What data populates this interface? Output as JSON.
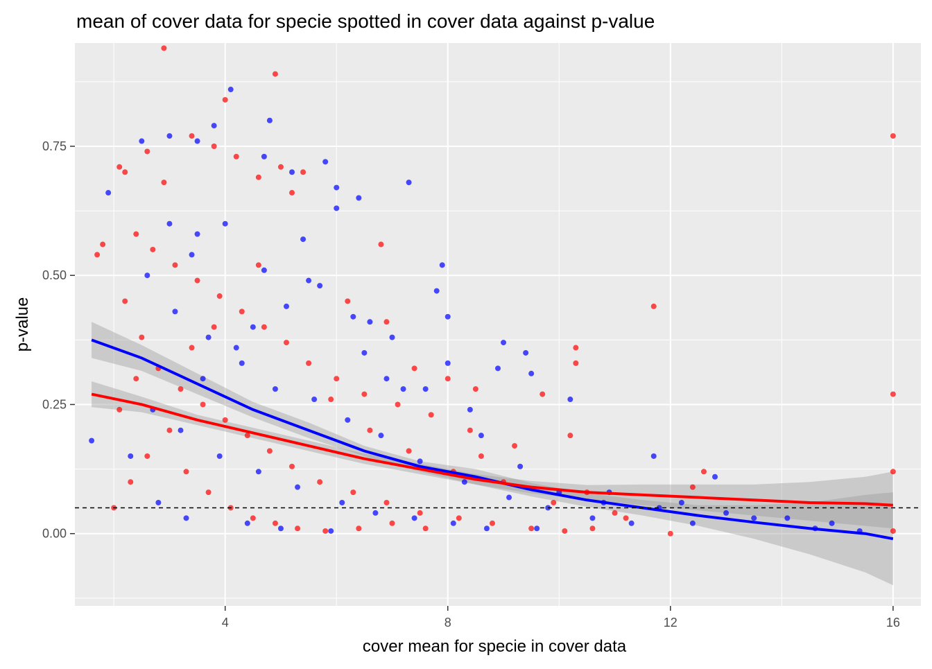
{
  "chart_data": {
    "type": "scatter",
    "title": "mean of cover data for specie spotted in cover data against p-value",
    "xlabel": "cover mean for specie in cover data",
    "ylabel": "p-value",
    "xlim": [
      1.3,
      16.5
    ],
    "ylim": [
      -0.14,
      0.95
    ],
    "x_ticks": [
      4,
      8,
      12,
      16
    ],
    "x_tick_labels": [
      "4",
      "8",
      "12",
      "16"
    ],
    "y_ticks": [
      0.0,
      0.25,
      0.5,
      0.75
    ],
    "y_tick_labels": [
      "0.00",
      "0.25",
      "0.50",
      "0.75"
    ],
    "grid": true,
    "legend": "none",
    "reference_line": {
      "y": 0.05,
      "style": "dashed"
    },
    "colors": {
      "panel_bg": "#ebebeb",
      "grid": "#ffffff",
      "blue": "#0000ff",
      "red": "#ff0000",
      "ribbon": "#999999",
      "reference": "#000000"
    },
    "series": [
      {
        "color": "blue",
        "points": [
          [
            1.6,
            0.18
          ],
          [
            1.9,
            0.66
          ],
          [
            2.5,
            0.76
          ],
          [
            3.0,
            0.77
          ],
          [
            3.5,
            0.76
          ],
          [
            3.8,
            0.79
          ],
          [
            4.1,
            0.86
          ],
          [
            4.8,
            0.8
          ],
          [
            4.7,
            0.73
          ],
          [
            5.2,
            0.7
          ],
          [
            5.8,
            0.72
          ],
          [
            6.0,
            0.67
          ],
          [
            6.0,
            0.63
          ],
          [
            6.4,
            0.65
          ],
          [
            7.3,
            0.68
          ],
          [
            7.9,
            0.52
          ],
          [
            8.0,
            0.42
          ],
          [
            8.0,
            0.33
          ],
          [
            9.0,
            0.37
          ],
          [
            9.4,
            0.35
          ],
          [
            9.5,
            0.31
          ],
          [
            10.2,
            0.26
          ],
          [
            10.9,
            0.08
          ],
          [
            11.7,
            0.15
          ],
          [
            12.8,
            0.11
          ],
          [
            14.1,
            0.03
          ],
          [
            14.6,
            0.01
          ],
          [
            15.4,
            0.005
          ],
          [
            8.9,
            0.32
          ],
          [
            8.4,
            0.24
          ],
          [
            7.2,
            0.28
          ],
          [
            6.9,
            0.3
          ],
          [
            6.5,
            0.35
          ],
          [
            5.4,
            0.57
          ],
          [
            4.0,
            0.6
          ],
          [
            3.4,
            0.54
          ],
          [
            2.6,
            0.5
          ],
          [
            3.1,
            0.43
          ],
          [
            3.7,
            0.38
          ],
          [
            4.3,
            0.33
          ],
          [
            4.9,
            0.28
          ],
          [
            5.6,
            0.26
          ],
          [
            6.2,
            0.22
          ],
          [
            6.8,
            0.19
          ],
          [
            7.5,
            0.14
          ],
          [
            8.3,
            0.1
          ],
          [
            9.1,
            0.07
          ],
          [
            9.8,
            0.05
          ],
          [
            10.6,
            0.03
          ],
          [
            11.3,
            0.02
          ],
          [
            12.4,
            0.02
          ],
          [
            3.2,
            0.2
          ],
          [
            3.9,
            0.15
          ],
          [
            4.6,
            0.12
          ],
          [
            5.3,
            0.09
          ],
          [
            6.1,
            0.06
          ],
          [
            6.7,
            0.04
          ],
          [
            7.4,
            0.03
          ],
          [
            8.1,
            0.02
          ],
          [
            8.7,
            0.01
          ],
          [
            9.6,
            0.01
          ],
          [
            2.8,
            0.06
          ],
          [
            3.3,
            0.03
          ],
          [
            4.4,
            0.02
          ],
          [
            5.0,
            0.01
          ],
          [
            5.9,
            0.005
          ],
          [
            2.3,
            0.15
          ],
          [
            2.7,
            0.24
          ],
          [
            3.6,
            0.3
          ],
          [
            4.2,
            0.36
          ],
          [
            4.5,
            0.4
          ],
          [
            5.1,
            0.44
          ],
          [
            5.7,
            0.48
          ],
          [
            6.3,
            0.42
          ],
          [
            7.0,
            0.38
          ],
          [
            7.8,
            0.47
          ],
          [
            3.0,
            0.6
          ],
          [
            3.5,
            0.58
          ],
          [
            4.7,
            0.51
          ],
          [
            5.5,
            0.49
          ],
          [
            6.6,
            0.41
          ],
          [
            7.6,
            0.28
          ],
          [
            8.6,
            0.19
          ],
          [
            9.3,
            0.13
          ],
          [
            10.0,
            0.08
          ],
          [
            10.8,
            0.06
          ],
          [
            11.8,
            0.05
          ],
          [
            12.2,
            0.06
          ],
          [
            13.0,
            0.04
          ],
          [
            13.5,
            0.03
          ],
          [
            14.9,
            0.02
          ]
        ]
      },
      {
        "color": "red",
        "points": [
          [
            2.9,
            0.94
          ],
          [
            4.9,
            0.89
          ],
          [
            4.0,
            0.84
          ],
          [
            1.7,
            0.54
          ],
          [
            1.8,
            0.56
          ],
          [
            2.1,
            0.71
          ],
          [
            2.2,
            0.7
          ],
          [
            2.6,
            0.74
          ],
          [
            2.9,
            0.68
          ],
          [
            3.4,
            0.77
          ],
          [
            3.8,
            0.75
          ],
          [
            4.2,
            0.73
          ],
          [
            4.6,
            0.69
          ],
          [
            5.0,
            0.71
          ],
          [
            5.4,
            0.7
          ],
          [
            5.2,
            0.66
          ],
          [
            6.8,
            0.56
          ],
          [
            6.2,
            0.45
          ],
          [
            6.9,
            0.41
          ],
          [
            7.4,
            0.32
          ],
          [
            8.0,
            0.3
          ],
          [
            8.5,
            0.28
          ],
          [
            9.7,
            0.27
          ],
          [
            10.3,
            0.36
          ],
          [
            10.3,
            0.33
          ],
          [
            11.7,
            0.44
          ],
          [
            12.6,
            0.12
          ],
          [
            16.0,
            0.77
          ],
          [
            16.0,
            0.27
          ],
          [
            16.0,
            0.12
          ],
          [
            16.0,
            0.005
          ],
          [
            12.0,
            0.0
          ],
          [
            10.2,
            0.19
          ],
          [
            9.2,
            0.17
          ],
          [
            8.4,
            0.2
          ],
          [
            7.7,
            0.23
          ],
          [
            7.1,
            0.25
          ],
          [
            6.5,
            0.27
          ],
          [
            6.0,
            0.3
          ],
          [
            5.5,
            0.33
          ],
          [
            5.1,
            0.37
          ],
          [
            4.7,
            0.4
          ],
          [
            4.3,
            0.43
          ],
          [
            3.9,
            0.46
          ],
          [
            3.5,
            0.49
          ],
          [
            3.1,
            0.52
          ],
          [
            2.7,
            0.55
          ],
          [
            2.4,
            0.58
          ],
          [
            2.2,
            0.45
          ],
          [
            2.5,
            0.38
          ],
          [
            2.8,
            0.32
          ],
          [
            3.2,
            0.28
          ],
          [
            3.6,
            0.25
          ],
          [
            4.0,
            0.22
          ],
          [
            4.4,
            0.19
          ],
          [
            4.8,
            0.16
          ],
          [
            5.2,
            0.13
          ],
          [
            5.7,
            0.1
          ],
          [
            6.3,
            0.08
          ],
          [
            6.9,
            0.06
          ],
          [
            7.5,
            0.04
          ],
          [
            8.2,
            0.03
          ],
          [
            8.8,
            0.02
          ],
          [
            9.5,
            0.01
          ],
          [
            10.1,
            0.005
          ],
          [
            10.6,
            0.01
          ],
          [
            11.0,
            0.04
          ],
          [
            2.0,
            0.05
          ],
          [
            2.3,
            0.1
          ],
          [
            2.6,
            0.15
          ],
          [
            3.0,
            0.2
          ],
          [
            3.3,
            0.12
          ],
          [
            3.7,
            0.08
          ],
          [
            4.1,
            0.05
          ],
          [
            4.5,
            0.03
          ],
          [
            4.9,
            0.02
          ],
          [
            5.3,
            0.01
          ],
          [
            5.8,
            0.005
          ],
          [
            6.4,
            0.01
          ],
          [
            7.0,
            0.02
          ],
          [
            7.6,
            0.01
          ],
          [
            2.1,
            0.24
          ],
          [
            2.4,
            0.3
          ],
          [
            3.4,
            0.36
          ],
          [
            3.8,
            0.4
          ],
          [
            4.6,
            0.52
          ],
          [
            5.9,
            0.26
          ],
          [
            6.6,
            0.2
          ],
          [
            7.3,
            0.16
          ],
          [
            8.1,
            0.12
          ],
          [
            8.6,
            0.15
          ],
          [
            9.0,
            0.1
          ],
          [
            9.9,
            0.06
          ],
          [
            10.5,
            0.08
          ],
          [
            11.2,
            0.03
          ],
          [
            12.4,
            0.09
          ]
        ]
      }
    ],
    "smooth_lines": [
      {
        "color": "blue",
        "x": [
          1.6,
          2.5,
          3.5,
          4.5,
          5.5,
          6.5,
          7.5,
          8.5,
          9.5,
          10.5,
          11.5,
          12.5,
          13.5,
          14.5,
          15.5,
          16.0
        ],
        "y": [
          0.375,
          0.34,
          0.29,
          0.24,
          0.2,
          0.16,
          0.13,
          0.11,
          0.085,
          0.065,
          0.05,
          0.035,
          0.022,
          0.01,
          0.0,
          -0.01
        ],
        "lower": [
          0.34,
          0.315,
          0.27,
          0.225,
          0.185,
          0.15,
          0.12,
          0.095,
          0.072,
          0.052,
          0.035,
          0.015,
          -0.01,
          -0.04,
          -0.075,
          -0.1
        ],
        "upper": [
          0.41,
          0.365,
          0.31,
          0.255,
          0.215,
          0.17,
          0.14,
          0.125,
          0.098,
          0.078,
          0.065,
          0.055,
          0.055,
          0.06,
          0.075,
          0.08
        ]
      },
      {
        "color": "red",
        "x": [
          1.6,
          2.5,
          3.5,
          4.5,
          5.5,
          6.5,
          7.5,
          8.5,
          9.5,
          10.5,
          11.5,
          12.5,
          13.5,
          14.5,
          15.5,
          16.0
        ],
        "y": [
          0.27,
          0.25,
          0.22,
          0.195,
          0.17,
          0.145,
          0.125,
          0.105,
          0.09,
          0.08,
          0.075,
          0.07,
          0.065,
          0.06,
          0.058,
          0.055
        ],
        "lower": [
          0.245,
          0.235,
          0.21,
          0.185,
          0.16,
          0.135,
          0.115,
          0.095,
          0.078,
          0.066,
          0.055,
          0.045,
          0.035,
          0.025,
          0.015,
          0.01
        ],
        "upper": [
          0.295,
          0.265,
          0.23,
          0.205,
          0.18,
          0.155,
          0.135,
          0.115,
          0.102,
          0.094,
          0.095,
          0.095,
          0.095,
          0.1,
          0.11,
          0.12
        ]
      }
    ]
  }
}
